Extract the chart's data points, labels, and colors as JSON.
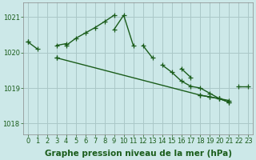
{
  "bg_color": "#cce8e8",
  "grid_color": "#aac8c8",
  "line_color": "#1a5c1a",
  "markersize": 4,
  "linewidth": 1.0,
  "xlabel": "Graphe pression niveau de la mer (hPa)",
  "xlabel_fontsize": 7.5,
  "xlabel_bold": true,
  "tick_color": "#1a5c1a",
  "xlim": [
    -0.5,
    23.5
  ],
  "ylim": [
    1017.7,
    1021.4
  ],
  "yticks": [
    1018,
    1019,
    1020,
    1021
  ],
  "xticks": [
    0,
    1,
    2,
    3,
    4,
    5,
    6,
    7,
    8,
    9,
    10,
    11,
    12,
    13,
    14,
    15,
    16,
    17,
    18,
    19,
    20,
    21,
    22,
    23
  ],
  "tick_fontsize": 6.0,
  "series1": [
    1020.3,
    1020.1,
    null,
    1020.2,
    1020.25,
    null,
    null,
    null,
    null,
    1020.65,
    1021.05,
    1020.2,
    null,
    null,
    1019.65,
    1019.45,
    1019.2,
    1019.05,
    1019.0,
    1018.85,
    1018.7,
    1018.65,
    null,
    null
  ],
  "series2": [
    null,
    null,
    null,
    1019.85,
    null,
    null,
    null,
    null,
    null,
    null,
    null,
    null,
    null,
    null,
    null,
    null,
    null,
    null,
    1018.8,
    1018.75,
    1018.7,
    1018.6,
    null,
    null
  ],
  "series3": [
    1020.3,
    null,
    null,
    null,
    1020.2,
    1020.4,
    1020.55,
    1020.7,
    1020.87,
    1021.05,
    null,
    null,
    1020.2,
    1019.85,
    null,
    null,
    1019.55,
    1019.3,
    null,
    null,
    null,
    null,
    1019.05,
    1019.05
  ]
}
